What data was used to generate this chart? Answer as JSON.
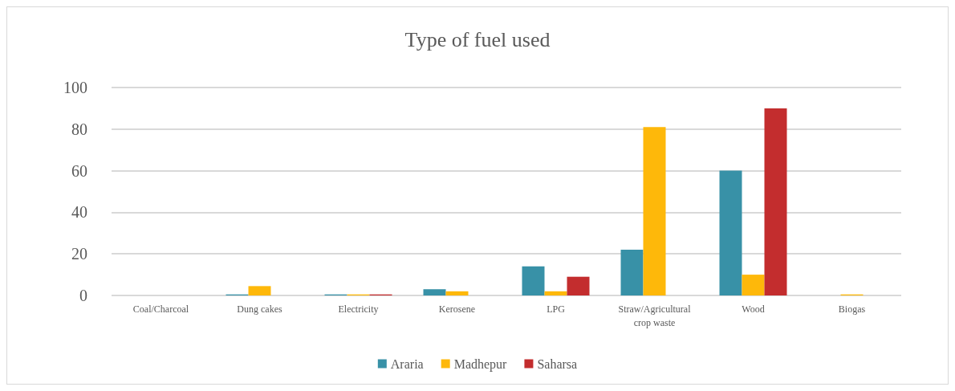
{
  "chart_data": {
    "type": "bar",
    "title": "Type of fuel used",
    "categories": [
      "Coal/Charcoal",
      "Dung cakes",
      "Electricity",
      "Kerosene",
      "LPG",
      "Straw/Agricultural\ncrop waste",
      "Wood",
      "Biogas"
    ],
    "series": [
      {
        "name": "Araria",
        "color": "#3891a7",
        "values": [
          0,
          0.5,
          0.5,
          3,
          14,
          22,
          60,
          null
        ]
      },
      {
        "name": "Madhepur",
        "color": "#feb80a",
        "values": [
          null,
          4.5,
          0.5,
          2,
          2,
          81,
          10,
          0.5
        ]
      },
      {
        "name": "Saharsa",
        "color": "#c32d2e",
        "values": [
          0,
          null,
          0.5,
          null,
          9,
          null,
          90,
          null
        ]
      }
    ],
    "ylim": [
      0,
      100
    ],
    "yticks": [
      0,
      20,
      40,
      60,
      80,
      100
    ],
    "grid": "y",
    "legend": "bottom"
  }
}
